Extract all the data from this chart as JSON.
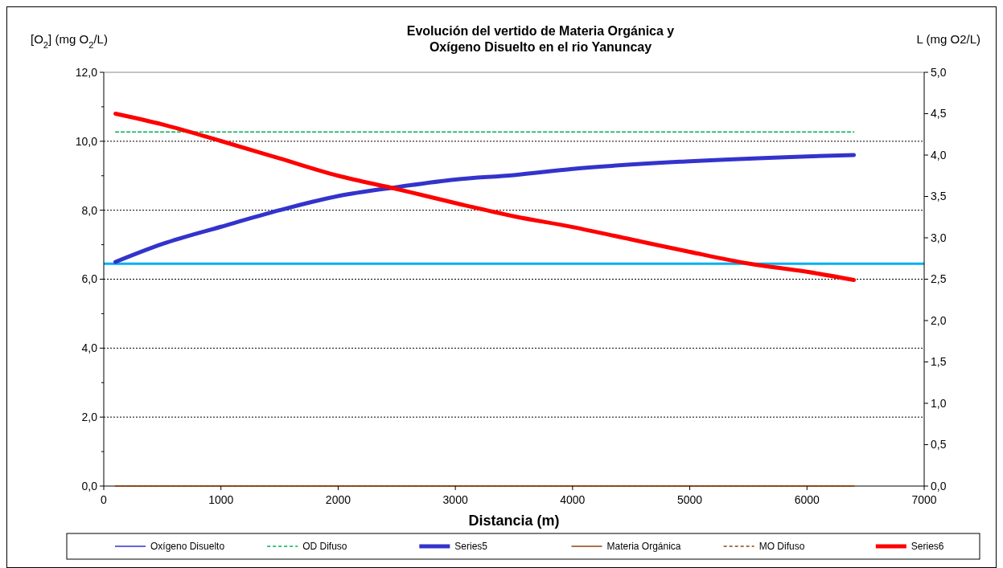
{
  "chart_data": {
    "type": "line",
    "title": "Evolución del vertido de Materia Orgánica y\nOxígeno Disuelto en el rio Yanuncay",
    "xlabel": "Distancia (m)",
    "ylabel": "[O$_{2}$] (mg O$_{2}$/L)",
    "y2label": "L (mg O2/L)",
    "xlim": [
      0,
      7000
    ],
    "xticks": [
      0,
      1000,
      2000,
      3000,
      4000,
      5000,
      6000,
      7000
    ],
    "ylim": [
      0,
      12
    ],
    "yticks": [
      {
        "value": 0,
        "label": "0,0"
      },
      {
        "value": 2,
        "label": "2,0"
      },
      {
        "value": 4,
        "label": "4,0"
      },
      {
        "value": 6,
        "label": "6,0"
      },
      {
        "value": 8,
        "label": "8,0"
      },
      {
        "value": 10,
        "label": "10,0"
      },
      {
        "value": 12,
        "label": "12,0"
      }
    ],
    "y2lim": [
      0,
      5
    ],
    "y2ticks": [
      {
        "value": 0,
        "label": "0,0"
      },
      {
        "value": 0.5,
        "label": "0,5"
      },
      {
        "value": 1,
        "label": "1,0"
      },
      {
        "value": 1.5,
        "label": "1,5"
      },
      {
        "value": 2,
        "label": "2,0"
      },
      {
        "value": 2.5,
        "label": "2,5"
      },
      {
        "value": 3,
        "label": "3,0"
      },
      {
        "value": 3.5,
        "label": "3,5"
      },
      {
        "value": 4,
        "label": "4,0"
      },
      {
        "value": 4.5,
        "label": "4,5"
      },
      {
        "value": 5,
        "label": "5,0"
      }
    ],
    "grid": "y",
    "legend": "bottom",
    "series": [
      {
        "name": "Oxígeno Disuelto",
        "color": "#3333cc"
      },
      {
        "name": "OD Difuso",
        "color": "#00b050",
        "line_style": "dashed",
        "x": [
          100,
          6400
        ],
        "values": [
          10.27,
          10.27
        ]
      },
      {
        "name": "Series5",
        "color": "#3333cc",
        "x": [
          100,
          500,
          1000,
          1500,
          2000,
          2500,
          3000,
          3500,
          4000,
          5000,
          6000,
          6400
        ],
        "values": [
          6.5,
          7.02,
          7.52,
          8.0,
          8.41,
          8.67,
          8.89,
          9.02,
          9.2,
          9.42,
          9.56,
          9.6
        ]
      },
      {
        "name": "Materia Orgánica",
        "color": "#8b4513",
        "axis": "y2",
        "x": [
          100,
          6400
        ],
        "values": [
          0,
          0
        ]
      },
      {
        "name": "MO Difuso",
        "color": "#8b4513",
        "line_style": "dashed",
        "axis": "y2",
        "x": [
          100,
          6400
        ],
        "values": [
          0,
          0
        ]
      },
      {
        "name": "Series6",
        "color": "#ff0000",
        "axis": "y2",
        "x": [
          100,
          500,
          1000,
          1500,
          2000,
          2500,
          3000,
          3500,
          4000,
          4500,
          5000,
          5500,
          6000,
          6400
        ],
        "values": [
          4.5,
          4.37,
          4.17,
          3.96,
          3.75,
          3.59,
          3.42,
          3.26,
          3.13,
          2.98,
          2.83,
          2.69,
          2.59,
          2.49
        ]
      }
    ],
    "ref_lines": [
      {
        "axis": "y",
        "value": 6.45,
        "label": null,
        "color": "#00b0f0"
      }
    ]
  }
}
